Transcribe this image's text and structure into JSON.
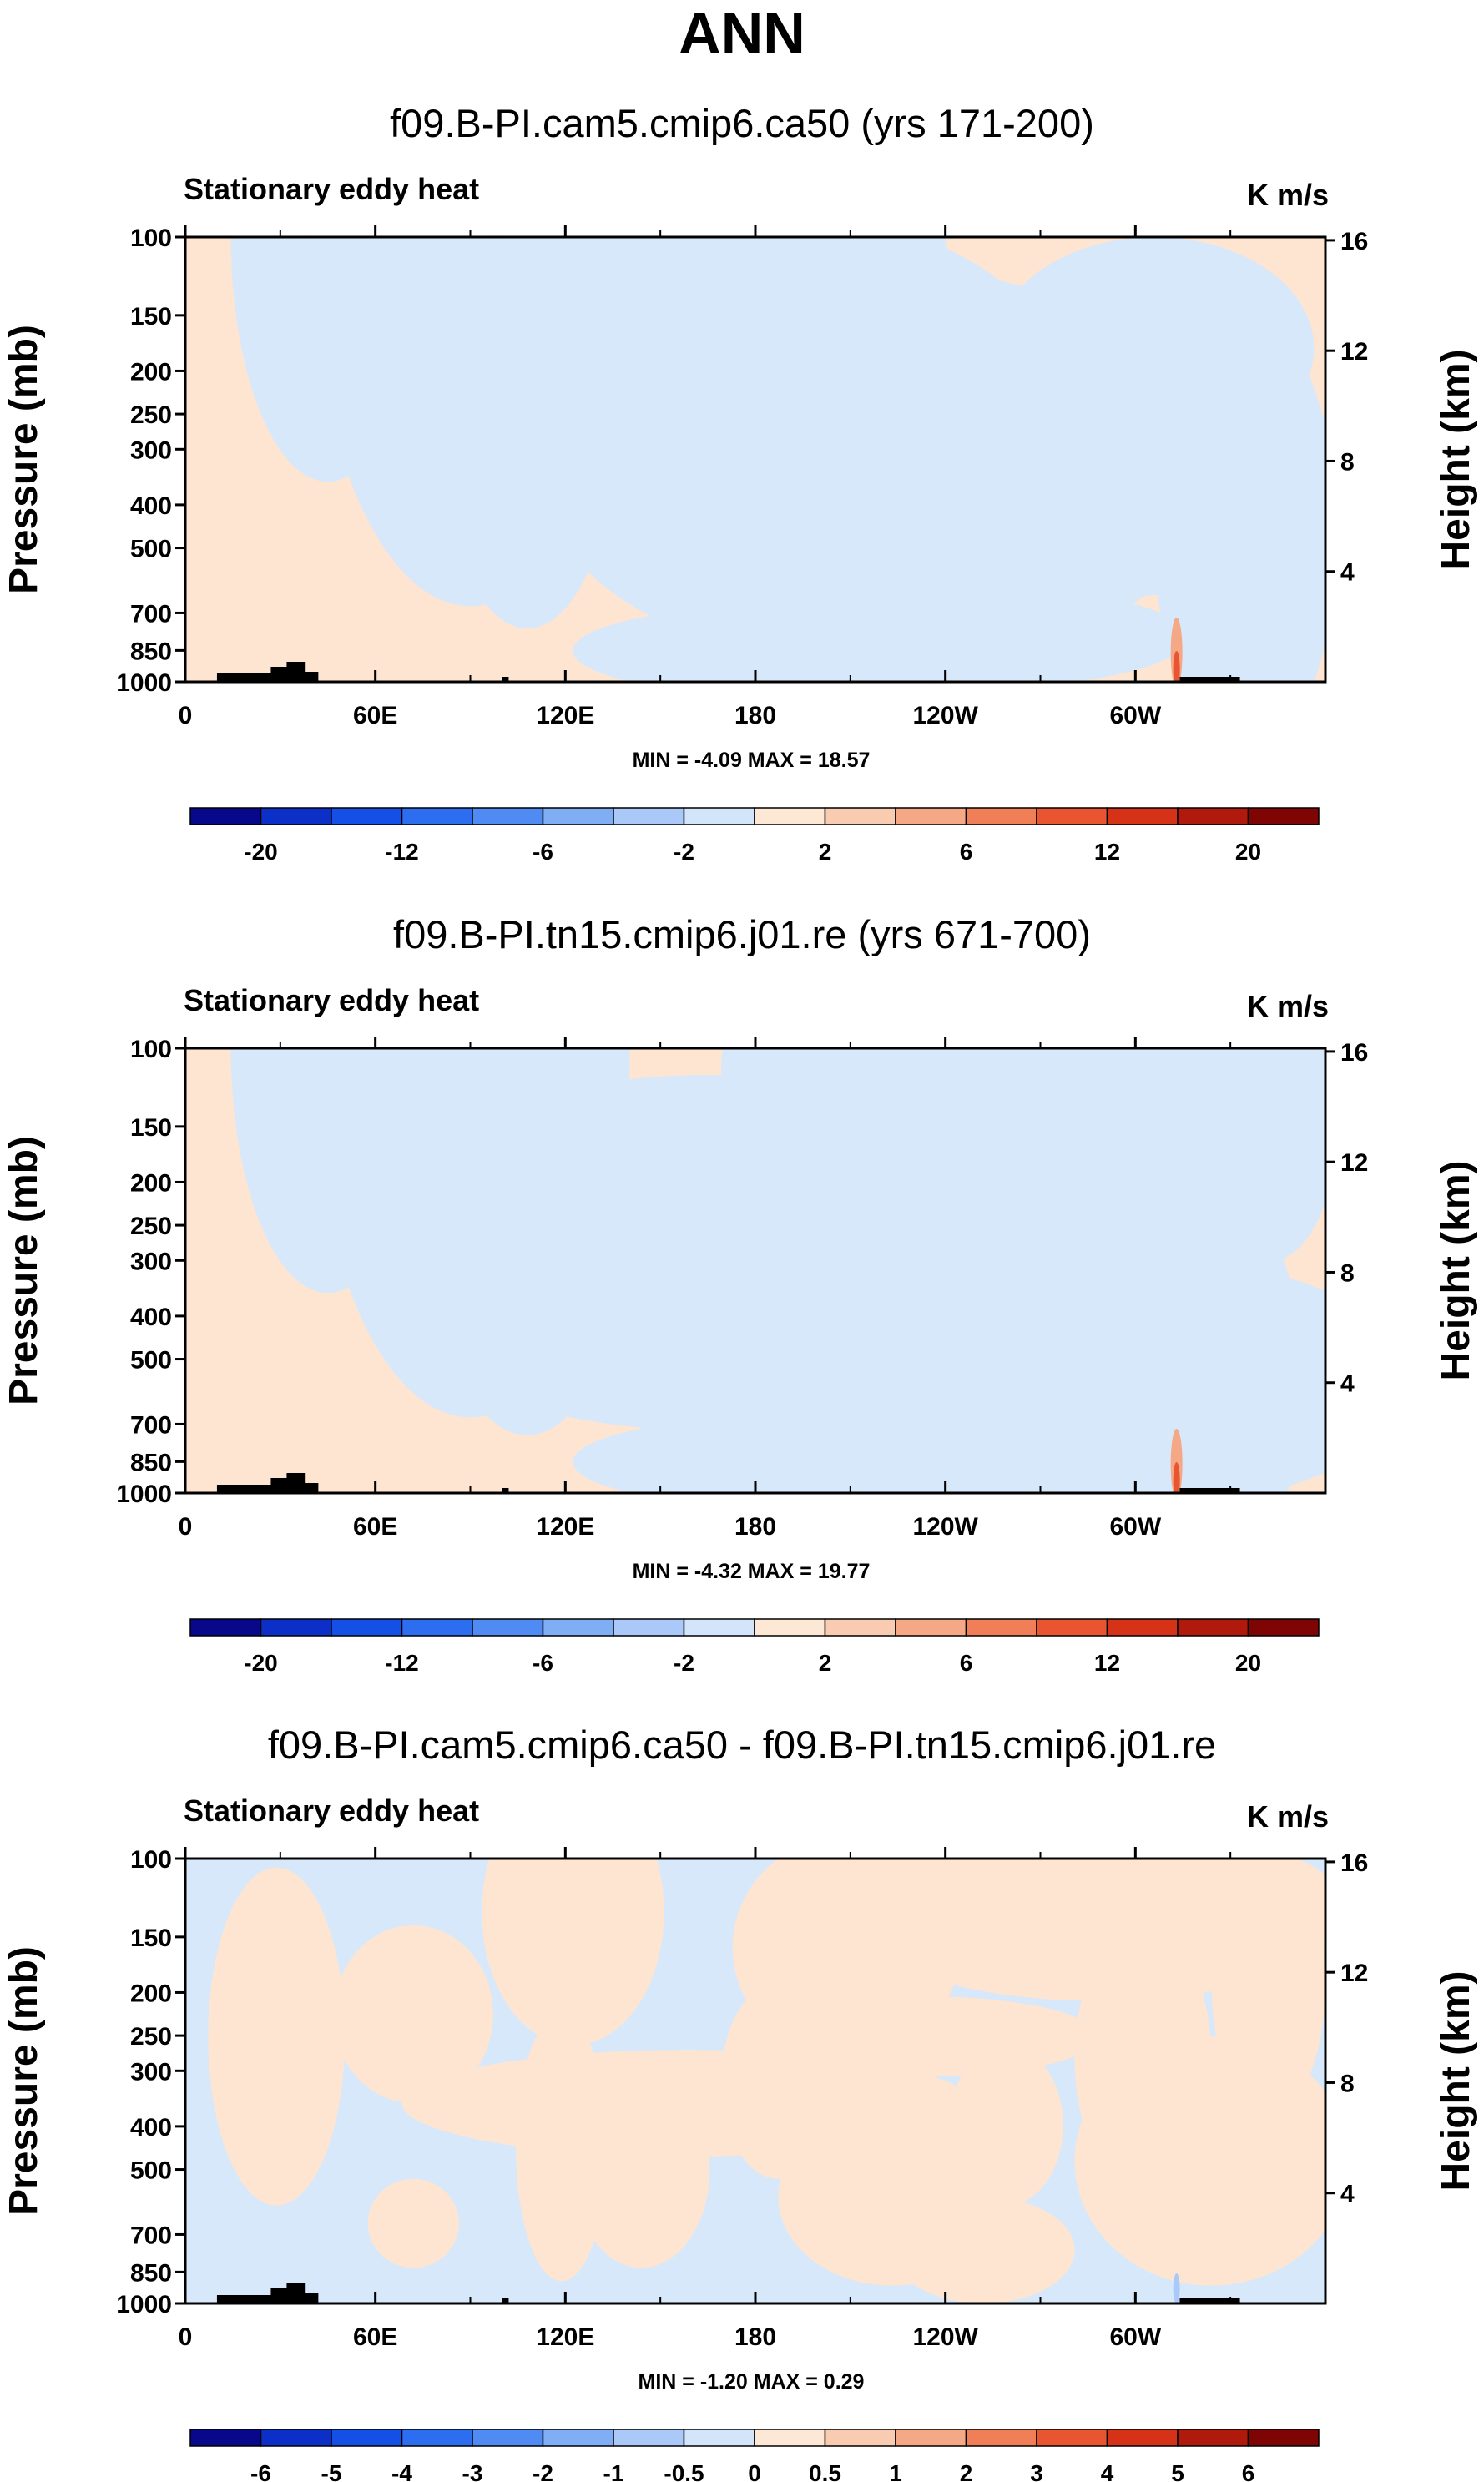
{
  "page_title": "ANN",
  "chart_data": [
    {
      "type": "heatmap",
      "title": "f09.B-PI.cam5.cmip6.ca50 (yrs 171-200)",
      "left_label": "Stationary eddy heat",
      "right_label": "K m/s",
      "ylabel": "Pressure (mb)",
      "ylabel_right": "Height (km)",
      "x_ticks": [
        "0",
        "60E",
        "120E",
        "180",
        "120W",
        "60W"
      ],
      "y_ticks": [
        "100",
        "150",
        "200",
        "250",
        "300",
        "400",
        "500",
        "700",
        "850",
        "1000"
      ],
      "y_ticks_right": [
        "16",
        "12",
        "8",
        "4"
      ],
      "stats": "MIN = -4.09  MAX = 18.57",
      "colorbar_labels": [
        "-20",
        "-12",
        "-6",
        "-2",
        "2",
        "6",
        "12",
        "20"
      ]
    },
    {
      "type": "heatmap",
      "title": "f09.B-PI.tn15.cmip6.j01.re (yrs 671-700)",
      "left_label": "Stationary eddy heat",
      "right_label": "K m/s",
      "ylabel": "Pressure (mb)",
      "ylabel_right": "Height (km)",
      "x_ticks": [
        "0",
        "60E",
        "120E",
        "180",
        "120W",
        "60W"
      ],
      "y_ticks": [
        "100",
        "150",
        "200",
        "250",
        "300",
        "400",
        "500",
        "700",
        "850",
        "1000"
      ],
      "y_ticks_right": [
        "16",
        "12",
        "8",
        "4"
      ],
      "stats": "MIN = -4.32  MAX = 19.77",
      "colorbar_labels": [
        "-20",
        "-12",
        "-6",
        "-2",
        "2",
        "6",
        "12",
        "20"
      ]
    },
    {
      "type": "heatmap",
      "title": "f09.B-PI.cam5.cmip6.ca50 - f09.B-PI.tn15.cmip6.j01.re",
      "left_label": "Stationary eddy heat",
      "right_label": "K m/s",
      "ylabel": "Pressure (mb)",
      "ylabel_right": "Height (km)",
      "x_ticks": [
        "0",
        "60E",
        "120E",
        "180",
        "120W",
        "60W"
      ],
      "y_ticks": [
        "100",
        "150",
        "200",
        "250",
        "300",
        "400",
        "500",
        "700",
        "850",
        "1000"
      ],
      "y_ticks_right": [
        "16",
        "12",
        "8",
        "4"
      ],
      "stats": "MIN = -1.20  MAX =  0.29",
      "colorbar_labels": [
        "-6",
        "-5",
        "-4",
        "-3",
        "-2",
        "-1",
        "-0.5",
        "0",
        "0.5",
        "1",
        "2",
        "3",
        "4",
        "5",
        "6"
      ]
    }
  ],
  "colors": {
    "positive_fill": "#fde5d2",
    "negative_fill": "#d7e8fa",
    "topography": "#000000",
    "colorbar": [
      "#08088a",
      "#0c2fc8",
      "#1550e6",
      "#2d6df0",
      "#4f8bf2",
      "#80aef5",
      "#abc9f8",
      "#d3e5fb",
      "#fde8d6",
      "#f9cbb0",
      "#f5a886",
      "#f07f58",
      "#e95530",
      "#d63218",
      "#b01a0d",
      "#7f0505"
    ]
  }
}
